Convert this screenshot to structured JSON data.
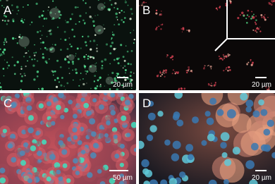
{
  "panels": [
    {
      "label": "A",
      "scale_bar": "20 µm"
    },
    {
      "label": "B",
      "scale_bar": "20 µm"
    },
    {
      "label": "C",
      "scale_bar": "50 µm"
    },
    {
      "label": "D",
      "scale_bar": "20 µm"
    }
  ]
}
